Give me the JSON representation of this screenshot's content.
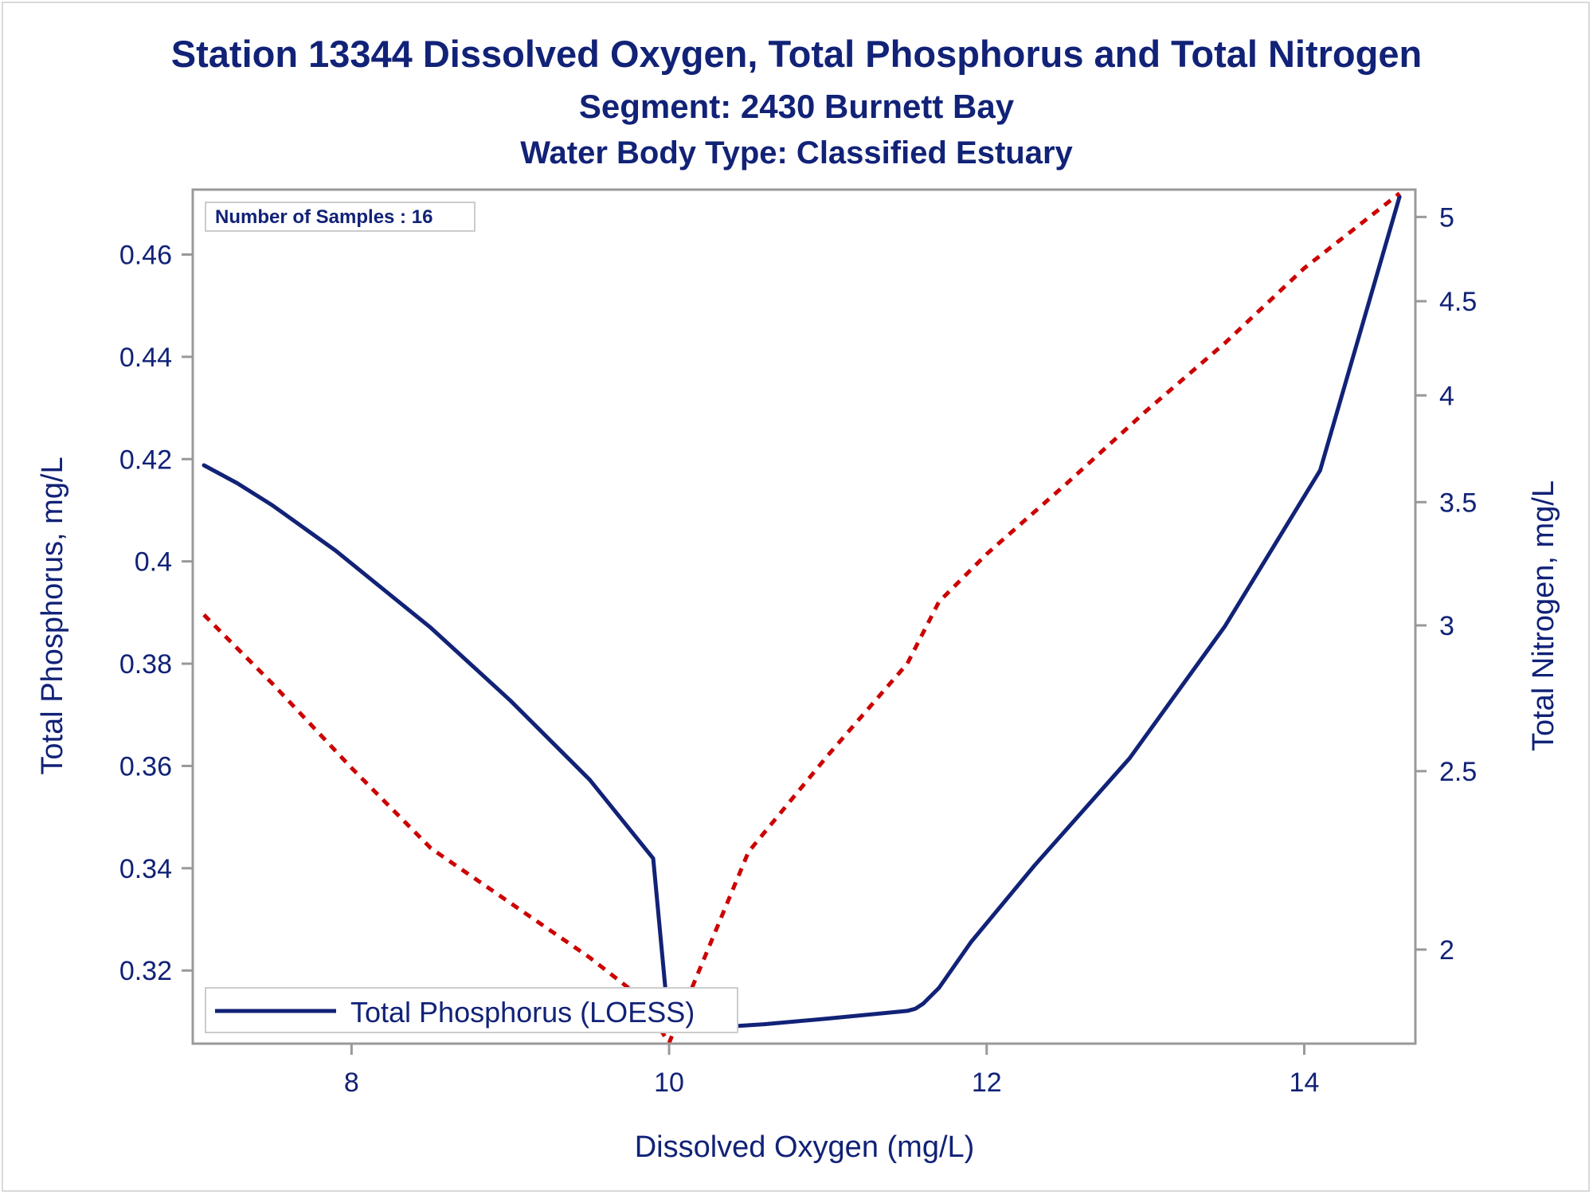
{
  "title": "Station 13344  Dissolved Oxygen, Total Phosphorus and Total Nitrogen",
  "subtitle": "Segment: 2430  Burnett Bay",
  "subtitle2": "Water Body Type: Classified Estuary",
  "inset_label": "Number of Samples : 16",
  "colors": {
    "text": "#112277",
    "phosphorus": "#112277",
    "nitrogen": "#cc0000",
    "frame": "#999999"
  },
  "chart_data": {
    "type": "line",
    "xlabel": "Dissolved Oxygen (mg/L)",
    "ylabel": "Total Phosphorus, mg/L",
    "y2label": "Total Nitrogen, mg/L",
    "xlim": [
      7.0,
      14.7
    ],
    "ylim": [
      0.3057,
      0.4727
    ],
    "y2lim": [
      1.778,
      5.174
    ],
    "y2_scale": "log",
    "x_ticks": [
      "8",
      "10",
      "12",
      "14"
    ],
    "y_ticks": [
      "0.32",
      "0.34",
      "0.36",
      "0.38",
      "0.4",
      "0.42",
      "0.44",
      "0.46"
    ],
    "y2_ticks": [
      "2",
      "2.5",
      "3",
      "3.5",
      "4",
      "4.5",
      "5"
    ],
    "legend_position": "bottom-left",
    "series": [
      {
        "name": "Total Phosphorus (LOESS)",
        "axis": "left",
        "style": "solid",
        "color": "#112277",
        "x": [
          7.07,
          7.28,
          7.5,
          7.9,
          8.5,
          9.0,
          9.5,
          9.9,
          10.0,
          10.3,
          10.6,
          11.0,
          11.5,
          11.55,
          11.6,
          11.7,
          11.9,
          12.3,
          12.9,
          13.5,
          14.1,
          14.6
        ],
        "y": [
          0.4188,
          0.4153,
          0.411,
          0.4021,
          0.387,
          0.3728,
          0.3573,
          0.3419,
          0.3086,
          0.3089,
          0.3095,
          0.3106,
          0.3121,
          0.3125,
          0.3135,
          0.3166,
          0.3255,
          0.3405,
          0.3615,
          0.3873,
          0.4178,
          0.4713
        ]
      },
      {
        "name": "Total Nitrogen",
        "axis": "right",
        "style": "dashed",
        "color": "#cc0000",
        "x": [
          7.07,
          7.5,
          8.0,
          8.5,
          9.0,
          9.5,
          9.8,
          10.0,
          10.5,
          11.0,
          11.5,
          11.7,
          12.0,
          12.5,
          13.0,
          13.5,
          14.0,
          14.6
        ],
        "y": [
          3.04,
          2.79,
          2.51,
          2.27,
          2.12,
          1.98,
          1.89,
          1.78,
          2.26,
          2.55,
          2.86,
          3.09,
          3.28,
          3.58,
          3.92,
          4.27,
          4.69,
          5.15
        ]
      }
    ]
  }
}
